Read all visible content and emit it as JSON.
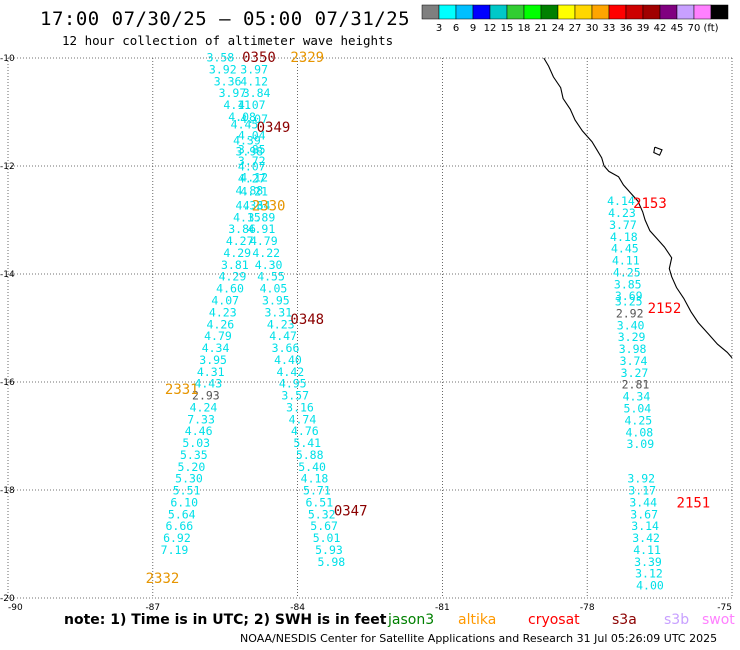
{
  "header": {
    "title": "17:00 07/30/25 — 05:00 07/31/25",
    "subtitle": "12 hour collection of altimeter wave heights"
  },
  "colorbar": {
    "colors": [
      "#7f7f7f",
      "#00ffff",
      "#00bfff",
      "#0000ff",
      "#00c8c8",
      "#32cd32",
      "#00ff00",
      "#008000",
      "#ffff00",
      "#ffd700",
      "#ffa500",
      "#ff0000",
      "#cd0000",
      "#a00000",
      "#800080",
      "#c8a0ff",
      "#ff80ff",
      "#000000"
    ],
    "labels": [
      "3",
      "6",
      "9",
      "12",
      "15",
      "18",
      "21",
      "24",
      "27",
      "30",
      "33",
      "36",
      "39",
      "42",
      "45",
      "70",
      "(ft)"
    ]
  },
  "note": "note: 1) Time is in UTC; 2) SWH is in feet",
  "legend": [
    {
      "name": "jason3",
      "color": "#008000"
    },
    {
      "name": "altika",
      "color": "#ff9900"
    },
    {
      "name": "cryosat",
      "color": "#ff0000"
    },
    {
      "name": "s3a",
      "color": "#8b0000"
    },
    {
      "name": "s3b",
      "color": "#c8a0ff"
    },
    {
      "name": "swot",
      "color": "#ff80ff"
    }
  ],
  "footer": "NOAA/NESDIS Center for Satellite Applications and Research   31 Jul 05:26:09 UTC 2025",
  "chart_data": {
    "type": "scatter",
    "xlim": [
      -90,
      -75
    ],
    "ylim": [
      -20,
      -10
    ],
    "xticks": [
      -90,
      -87,
      -84,
      -81,
      -78,
      -75
    ],
    "yticks": [
      -10,
      -12,
      -14,
      -16,
      -18,
      -20
    ],
    "grid": true,
    "point_colors": {
      "cyan": "#00e0e8",
      "gray": "#555555"
    },
    "passes": [
      {
        "label": "0350",
        "color": "#8b0000",
        "x": -84.8,
        "y": -10.0
      },
      {
        "label": "2329",
        "color": "#e69500",
        "x": -83.8,
        "y": -10.0
      },
      {
        "label": "0349",
        "color": "#8b0000",
        "x": -84.5,
        "y": -11.3
      },
      {
        "label": "2330",
        "color": "#e69500",
        "x": -84.6,
        "y": -12.75
      },
      {
        "label": "0348",
        "color": "#8b0000",
        "x": -83.8,
        "y": -14.85
      },
      {
        "label": "2331",
        "color": "#e69500",
        "x": -86.4,
        "y": -16.15
      },
      {
        "label": "0347",
        "color": "#8b0000",
        "x": -82.9,
        "y": -18.4
      },
      {
        "label": "2332",
        "color": "#e69500",
        "x": -86.8,
        "y": -19.65
      },
      {
        "label": "2153",
        "color": "#ff0000",
        "x": -76.7,
        "y": -12.7
      },
      {
        "label": "2152",
        "color": "#ff0000",
        "x": -76.4,
        "y": -14.65
      },
      {
        "label": "2151",
        "color": "#ff0000",
        "x": -75.8,
        "y": -18.25
      }
    ],
    "points": [
      {
        "x": -85.6,
        "y": -10.0,
        "v": "3.58",
        "c": "cyan"
      },
      {
        "x": -85.55,
        "y": -10.22,
        "v": "3.92",
        "c": "cyan"
      },
      {
        "x": -84.9,
        "y": -10.22,
        "v": "3.97",
        "c": "cyan"
      },
      {
        "x": -85.45,
        "y": -10.44,
        "v": "3.36",
        "c": "cyan"
      },
      {
        "x": -84.9,
        "y": -10.44,
        "v": "4.12",
        "c": "cyan"
      },
      {
        "x": -85.35,
        "y": -10.66,
        "v": "3.97",
        "c": "cyan"
      },
      {
        "x": -84.85,
        "y": -10.66,
        "v": "3.84",
        "c": "cyan"
      },
      {
        "x": -85.25,
        "y": -10.88,
        "v": "4.11",
        "c": "cyan"
      },
      {
        "x": -84.95,
        "y": -10.88,
        "v": "4.07",
        "c": "cyan"
      },
      {
        "x": -85.15,
        "y": -11.1,
        "v": "4.08",
        "c": "cyan"
      },
      {
        "x": -84.9,
        "y": -11.14,
        "v": "4.07",
        "c": "cyan"
      },
      {
        "x": -85.1,
        "y": -11.24,
        "v": "4.45",
        "c": "cyan"
      },
      {
        "x": -84.95,
        "y": -11.44,
        "v": "4.04",
        "c": "cyan"
      },
      {
        "x": -85.05,
        "y": -11.54,
        "v": "4.39",
        "c": "cyan"
      },
      {
        "x": -84.95,
        "y": -11.7,
        "v": "3.85",
        "c": "cyan"
      },
      {
        "x": -85.0,
        "y": -11.74,
        "v": "3.98",
        "c": "cyan"
      },
      {
        "x": -84.95,
        "y": -11.92,
        "v": "3.72",
        "c": "cyan"
      },
      {
        "x": -84.95,
        "y": -12.02,
        "v": "4.07",
        "c": "cyan"
      },
      {
        "x": -84.9,
        "y": -12.22,
        "v": "4.12",
        "c": "cyan"
      },
      {
        "x": -84.95,
        "y": -12.24,
        "v": "4.27",
        "c": "cyan"
      },
      {
        "x": -84.9,
        "y": -12.48,
        "v": "4.21",
        "c": "cyan"
      },
      {
        "x": -85.0,
        "y": -12.46,
        "v": "4.88",
        "c": "cyan"
      },
      {
        "x": -85.0,
        "y": -12.74,
        "v": "4.33",
        "c": "cyan"
      },
      {
        "x": -84.85,
        "y": -12.74,
        "v": "4.64",
        "c": "cyan"
      },
      {
        "x": -85.05,
        "y": -12.96,
        "v": "4.15",
        "c": "cyan"
      },
      {
        "x": -84.75,
        "y": -12.96,
        "v": "3.89",
        "c": "cyan"
      },
      {
        "x": -85.15,
        "y": -13.18,
        "v": "3.86",
        "c": "cyan"
      },
      {
        "x": -84.75,
        "y": -13.18,
        "v": "4.91",
        "c": "cyan"
      },
      {
        "x": -85.2,
        "y": -13.4,
        "v": "4.27",
        "c": "cyan"
      },
      {
        "x": -84.7,
        "y": -13.4,
        "v": "4.79",
        "c": "cyan"
      },
      {
        "x": -85.25,
        "y": -13.62,
        "v": "4.29",
        "c": "cyan"
      },
      {
        "x": -84.65,
        "y": -13.62,
        "v": "4.22",
        "c": "cyan"
      },
      {
        "x": -85.3,
        "y": -13.84,
        "v": "3.81",
        "c": "cyan"
      },
      {
        "x": -84.6,
        "y": -13.84,
        "v": "4.30",
        "c": "cyan"
      },
      {
        "x": -85.35,
        "y": -14.06,
        "v": "4.29",
        "c": "cyan"
      },
      {
        "x": -84.55,
        "y": -14.06,
        "v": "4.55",
        "c": "cyan"
      },
      {
        "x": -85.4,
        "y": -14.28,
        "v": "4.60",
        "c": "cyan"
      },
      {
        "x": -84.5,
        "y": -14.28,
        "v": "4.05",
        "c": "cyan"
      },
      {
        "x": -85.5,
        "y": -14.5,
        "v": "4.07",
        "c": "cyan"
      },
      {
        "x": -84.45,
        "y": -14.5,
        "v": "3.95",
        "c": "cyan"
      },
      {
        "x": -85.55,
        "y": -14.72,
        "v": "4.23",
        "c": "cyan"
      },
      {
        "x": -84.4,
        "y": -14.72,
        "v": "3.31",
        "c": "cyan"
      },
      {
        "x": -85.6,
        "y": -14.94,
        "v": "4.26",
        "c": "cyan"
      },
      {
        "x": -84.35,
        "y": -14.94,
        "v": "4.23",
        "c": "cyan"
      },
      {
        "x": -85.65,
        "y": -15.16,
        "v": "4.79",
        "c": "cyan"
      },
      {
        "x": -84.3,
        "y": -15.16,
        "v": "4.47",
        "c": "cyan"
      },
      {
        "x": -85.7,
        "y": -15.38,
        "v": "4.34",
        "c": "cyan"
      },
      {
        "x": -84.25,
        "y": -15.38,
        "v": "3.66",
        "c": "cyan"
      },
      {
        "x": -85.75,
        "y": -15.6,
        "v": "3.95",
        "c": "cyan"
      },
      {
        "x": -84.2,
        "y": -15.6,
        "v": "4.40",
        "c": "cyan"
      },
      {
        "x": -85.8,
        "y": -15.82,
        "v": "4.31",
        "c": "cyan"
      },
      {
        "x": -84.15,
        "y": -15.82,
        "v": "4.42",
        "c": "cyan"
      },
      {
        "x": -85.85,
        "y": -16.04,
        "v": "4.43",
        "c": "cyan"
      },
      {
        "x": -84.1,
        "y": -16.04,
        "v": "4.95",
        "c": "cyan"
      },
      {
        "x": -85.9,
        "y": -16.26,
        "v": "2.93",
        "c": "gray"
      },
      {
        "x": -84.05,
        "y": -16.26,
        "v": "3.57",
        "c": "cyan"
      },
      {
        "x": -85.95,
        "y": -16.48,
        "v": "4.24",
        "c": "cyan"
      },
      {
        "x": -83.95,
        "y": -16.48,
        "v": "3.16",
        "c": "cyan"
      },
      {
        "x": -86.0,
        "y": -16.7,
        "v": "7.33",
        "c": "cyan"
      },
      {
        "x": -83.9,
        "y": -16.7,
        "v": "4.74",
        "c": "cyan"
      },
      {
        "x": -86.05,
        "y": -16.92,
        "v": "4.46",
        "c": "cyan"
      },
      {
        "x": -83.85,
        "y": -16.92,
        "v": "4.76",
        "c": "cyan"
      },
      {
        "x": -86.1,
        "y": -17.14,
        "v": "5.03",
        "c": "cyan"
      },
      {
        "x": -83.8,
        "y": -17.14,
        "v": "5.41",
        "c": "cyan"
      },
      {
        "x": -86.15,
        "y": -17.36,
        "v": "5.35",
        "c": "cyan"
      },
      {
        "x": -83.75,
        "y": -17.36,
        "v": "5.88",
        "c": "cyan"
      },
      {
        "x": -86.2,
        "y": -17.58,
        "v": "5.20",
        "c": "cyan"
      },
      {
        "x": -83.7,
        "y": -17.58,
        "v": "5.40",
        "c": "cyan"
      },
      {
        "x": -86.25,
        "y": -17.8,
        "v": "5.30",
        "c": "cyan"
      },
      {
        "x": -83.65,
        "y": -17.8,
        "v": "4.18",
        "c": "cyan"
      },
      {
        "x": -86.3,
        "y": -18.02,
        "v": "5.51",
        "c": "cyan"
      },
      {
        "x": -83.6,
        "y": -18.02,
        "v": "5.71",
        "c": "cyan"
      },
      {
        "x": -86.35,
        "y": -18.24,
        "v": "6.10",
        "c": "cyan"
      },
      {
        "x": -83.55,
        "y": -18.24,
        "v": "6.51",
        "c": "cyan"
      },
      {
        "x": -86.4,
        "y": -18.46,
        "v": "5.64",
        "c": "cyan"
      },
      {
        "x": -83.5,
        "y": -18.46,
        "v": "5.32",
        "c": "cyan"
      },
      {
        "x": -86.45,
        "y": -18.68,
        "v": "6.66",
        "c": "cyan"
      },
      {
        "x": -83.45,
        "y": -18.68,
        "v": "5.67",
        "c": "cyan"
      },
      {
        "x": -86.5,
        "y": -18.9,
        "v": "6.92",
        "c": "cyan"
      },
      {
        "x": -83.4,
        "y": -18.9,
        "v": "5.01",
        "c": "cyan"
      },
      {
        "x": -86.55,
        "y": -19.12,
        "v": "7.19",
        "c": "cyan"
      },
      {
        "x": -83.35,
        "y": -19.12,
        "v": "5.93",
        "c": "cyan"
      },
      {
        "x": -83.3,
        "y": -19.34,
        "v": "5.98",
        "c": "cyan"
      },
      {
        "x": -77.3,
        "y": -12.66,
        "v": "4.14",
        "c": "cyan"
      },
      {
        "x": -77.28,
        "y": -12.88,
        "v": "4.23",
        "c": "cyan"
      },
      {
        "x": -77.26,
        "y": -13.1,
        "v": "3.77",
        "c": "cyan"
      },
      {
        "x": -77.24,
        "y": -13.32,
        "v": "4.18",
        "c": "cyan"
      },
      {
        "x": -77.22,
        "y": -13.54,
        "v": "4.45",
        "c": "cyan"
      },
      {
        "x": -77.2,
        "y": -13.76,
        "v": "4.11",
        "c": "cyan"
      },
      {
        "x": -77.18,
        "y": -13.98,
        "v": "4.25",
        "c": "cyan"
      },
      {
        "x": -77.16,
        "y": -14.2,
        "v": "3.85",
        "c": "cyan"
      },
      {
        "x": -77.14,
        "y": -14.42,
        "v": "3.69",
        "c": "cyan"
      },
      {
        "x": -77.14,
        "y": -14.52,
        "v": "3.25",
        "c": "cyan"
      },
      {
        "x": -77.12,
        "y": -14.74,
        "v": "2.92",
        "c": "gray"
      },
      {
        "x": -77.1,
        "y": -14.96,
        "v": "3.40",
        "c": "cyan"
      },
      {
        "x": -77.08,
        "y": -15.18,
        "v": "3.29",
        "c": "cyan"
      },
      {
        "x": -77.06,
        "y": -15.4,
        "v": "3.98",
        "c": "cyan"
      },
      {
        "x": -77.04,
        "y": -15.62,
        "v": "3.74",
        "c": "cyan"
      },
      {
        "x": -77.02,
        "y": -15.84,
        "v": "3.27",
        "c": "cyan"
      },
      {
        "x": -77.0,
        "y": -16.06,
        "v": "2.81",
        "c": "gray"
      },
      {
        "x": -76.98,
        "y": -16.28,
        "v": "4.34",
        "c": "cyan"
      },
      {
        "x": -76.96,
        "y": -16.5,
        "v": "5.04",
        "c": "cyan"
      },
      {
        "x": -76.94,
        "y": -16.72,
        "v": "4.25",
        "c": "cyan"
      },
      {
        "x": -76.92,
        "y": -16.94,
        "v": "4.08",
        "c": "cyan"
      },
      {
        "x": -76.9,
        "y": -17.16,
        "v": "3.09",
        "c": "cyan"
      },
      {
        "x": -76.88,
        "y": -17.8,
        "v": "3.92",
        "c": "cyan"
      },
      {
        "x": -76.86,
        "y": -18.02,
        "v": "3.17",
        "c": "cyan"
      },
      {
        "x": -76.84,
        "y": -18.24,
        "v": "3.44",
        "c": "cyan"
      },
      {
        "x": -76.82,
        "y": -18.46,
        "v": "3.67",
        "c": "cyan"
      },
      {
        "x": -76.8,
        "y": -18.68,
        "v": "3.14",
        "c": "cyan"
      },
      {
        "x": -76.78,
        "y": -18.9,
        "v": "3.42",
        "c": "cyan"
      },
      {
        "x": -76.76,
        "y": -19.12,
        "v": "4.11",
        "c": "cyan"
      },
      {
        "x": -76.74,
        "y": -19.34,
        "v": "3.39",
        "c": "cyan"
      },
      {
        "x": -76.72,
        "y": -19.56,
        "v": "3.12",
        "c": "cyan"
      },
      {
        "x": -76.7,
        "y": -19.78,
        "v": "4.00",
        "c": "cyan"
      }
    ],
    "coastline": [
      [
        -78.9,
        -10.0
      ],
      [
        -78.8,
        -10.15
      ],
      [
        -78.7,
        -10.35
      ],
      [
        -78.55,
        -10.55
      ],
      [
        -78.5,
        -10.75
      ],
      [
        -78.35,
        -10.95
      ],
      [
        -78.25,
        -11.15
      ],
      [
        -78.1,
        -11.35
      ],
      [
        -77.9,
        -11.55
      ],
      [
        -77.8,
        -11.7
      ],
      [
        -77.7,
        -11.85
      ],
      [
        -77.65,
        -12.0
      ],
      [
        -77.55,
        -12.1
      ],
      [
        -77.35,
        -12.2
      ],
      [
        -77.25,
        -12.35
      ],
      [
        -77.1,
        -12.5
      ],
      [
        -76.95,
        -12.65
      ],
      [
        -76.85,
        -12.85
      ],
      [
        -76.8,
        -13.0
      ],
      [
        -76.7,
        -13.2
      ],
      [
        -76.55,
        -13.35
      ],
      [
        -76.4,
        -13.5
      ],
      [
        -76.25,
        -13.7
      ],
      [
        -76.3,
        -13.9
      ],
      [
        -76.25,
        -14.05
      ],
      [
        -76.15,
        -14.25
      ],
      [
        -76.0,
        -14.45
      ],
      [
        -75.85,
        -14.7
      ],
      [
        -75.7,
        -14.9
      ],
      [
        -75.5,
        -15.1
      ],
      [
        -75.3,
        -15.3
      ],
      [
        -75.1,
        -15.45
      ],
      [
        -75.0,
        -15.55
      ]
    ],
    "island": [
      [
        -76.6,
        -11.65
      ],
      [
        -76.45,
        -11.7
      ],
      [
        -76.5,
        -11.8
      ],
      [
        -76.62,
        -11.75
      ],
      [
        -76.6,
        -11.65
      ]
    ]
  }
}
